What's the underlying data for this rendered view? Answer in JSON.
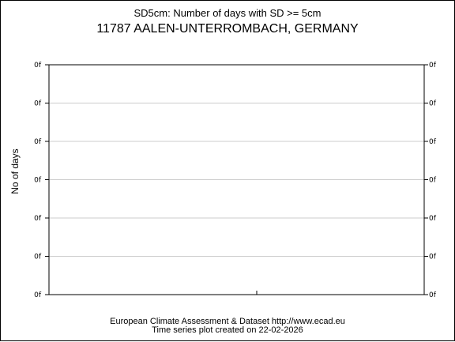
{
  "chart_data": {
    "type": "line",
    "title": "SD5cm: Number of days with SD >= 5cm",
    "subtitle": "11787 AALEN-UNTERROMBACH, GERMANY",
    "ylabel": "No of days",
    "xlabel": "",
    "y_tick_labels": [
      "0f",
      "0f",
      "0f",
      "0f",
      "0f",
      "0f",
      "0f"
    ],
    "x_tick_labels": [
      ""
    ],
    "series": [],
    "grid": true,
    "colors": {
      "grid": "#cccccc",
      "axis": "#000000"
    }
  },
  "footer": {
    "source": "European Climate Assessment & Dataset  http://www.ecad.eu",
    "created": "Time series plot created on 22-02-2026"
  }
}
